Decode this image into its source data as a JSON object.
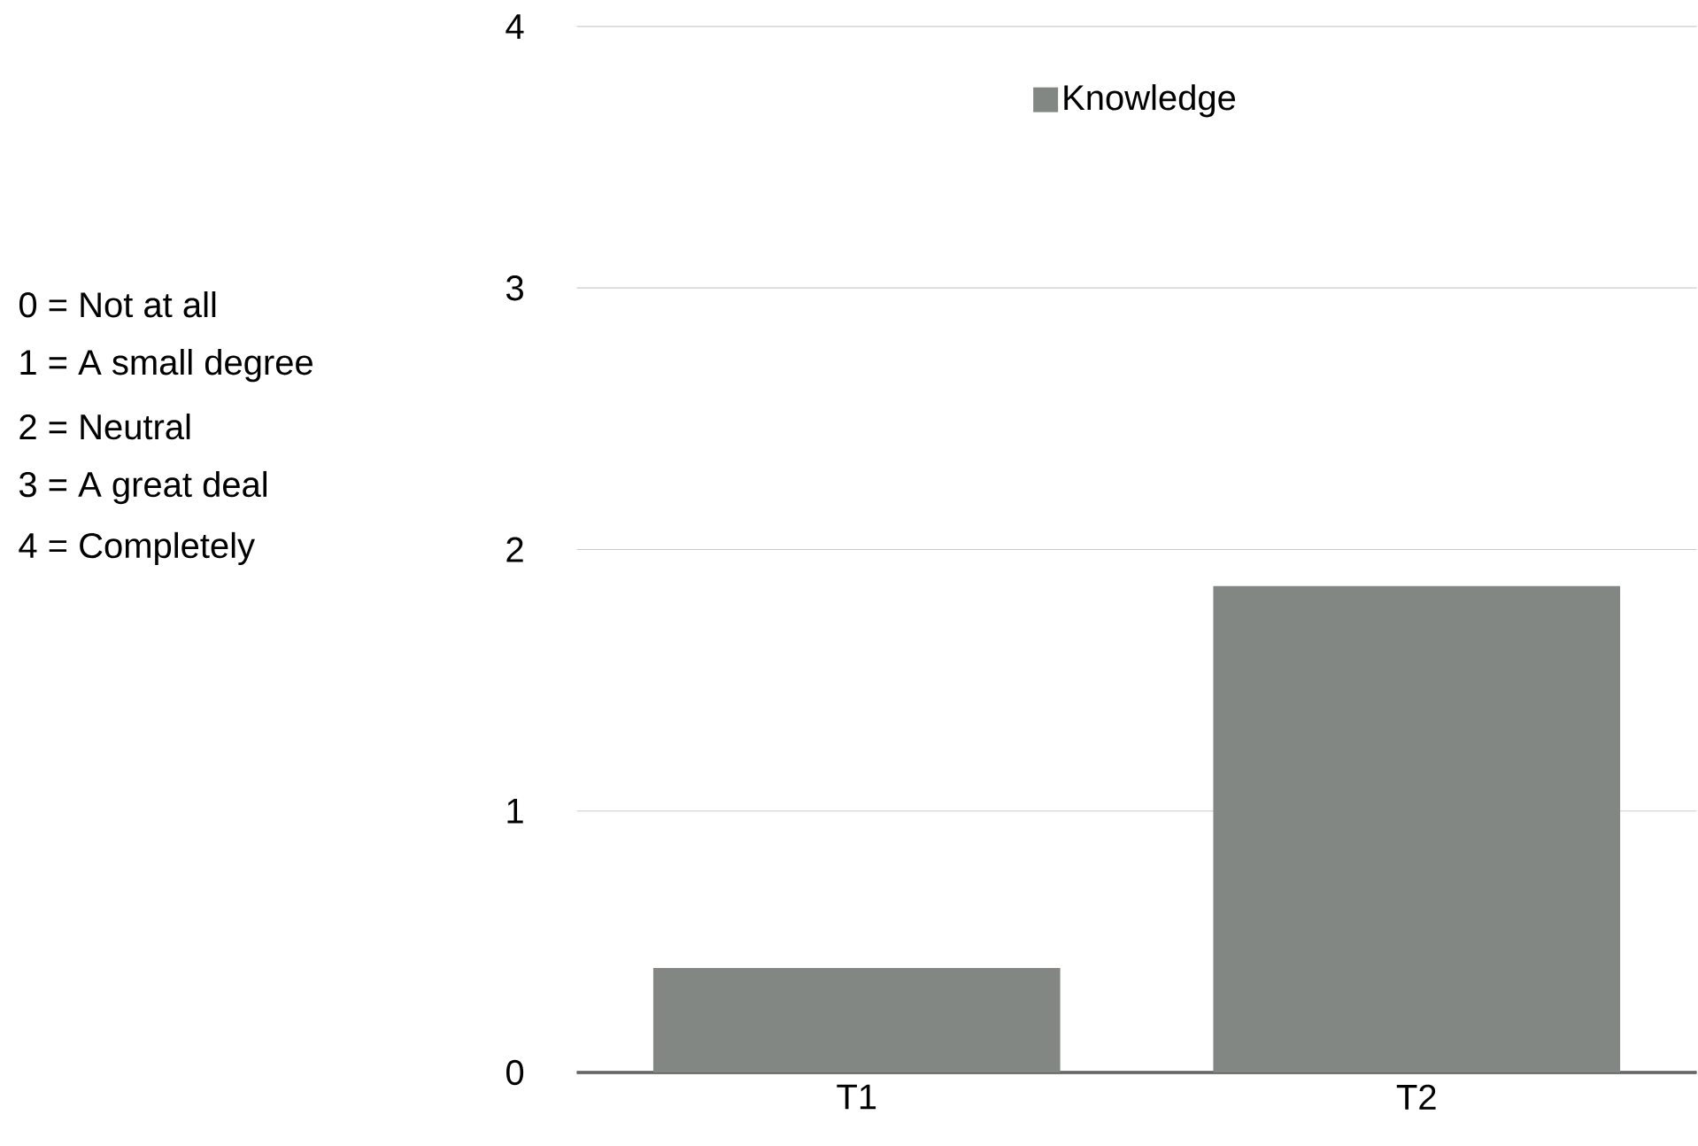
{
  "chart_data": {
    "type": "bar",
    "categories": [
      "T1",
      "T2"
    ],
    "series": [
      {
        "name": "Knowledge",
        "color": "#828784",
        "values": [
          0.4,
          1.86
        ]
      }
    ],
    "ylim": [
      0,
      4
    ],
    "yticks": [
      0,
      1,
      2,
      3,
      4
    ],
    "grid": "y",
    "legend": "top",
    "annotations": [
      "0 = Not at all",
      "1 = A small degree",
      "2 = Neutral",
      "3 = A great deal",
      "4 = Completely"
    ]
  }
}
